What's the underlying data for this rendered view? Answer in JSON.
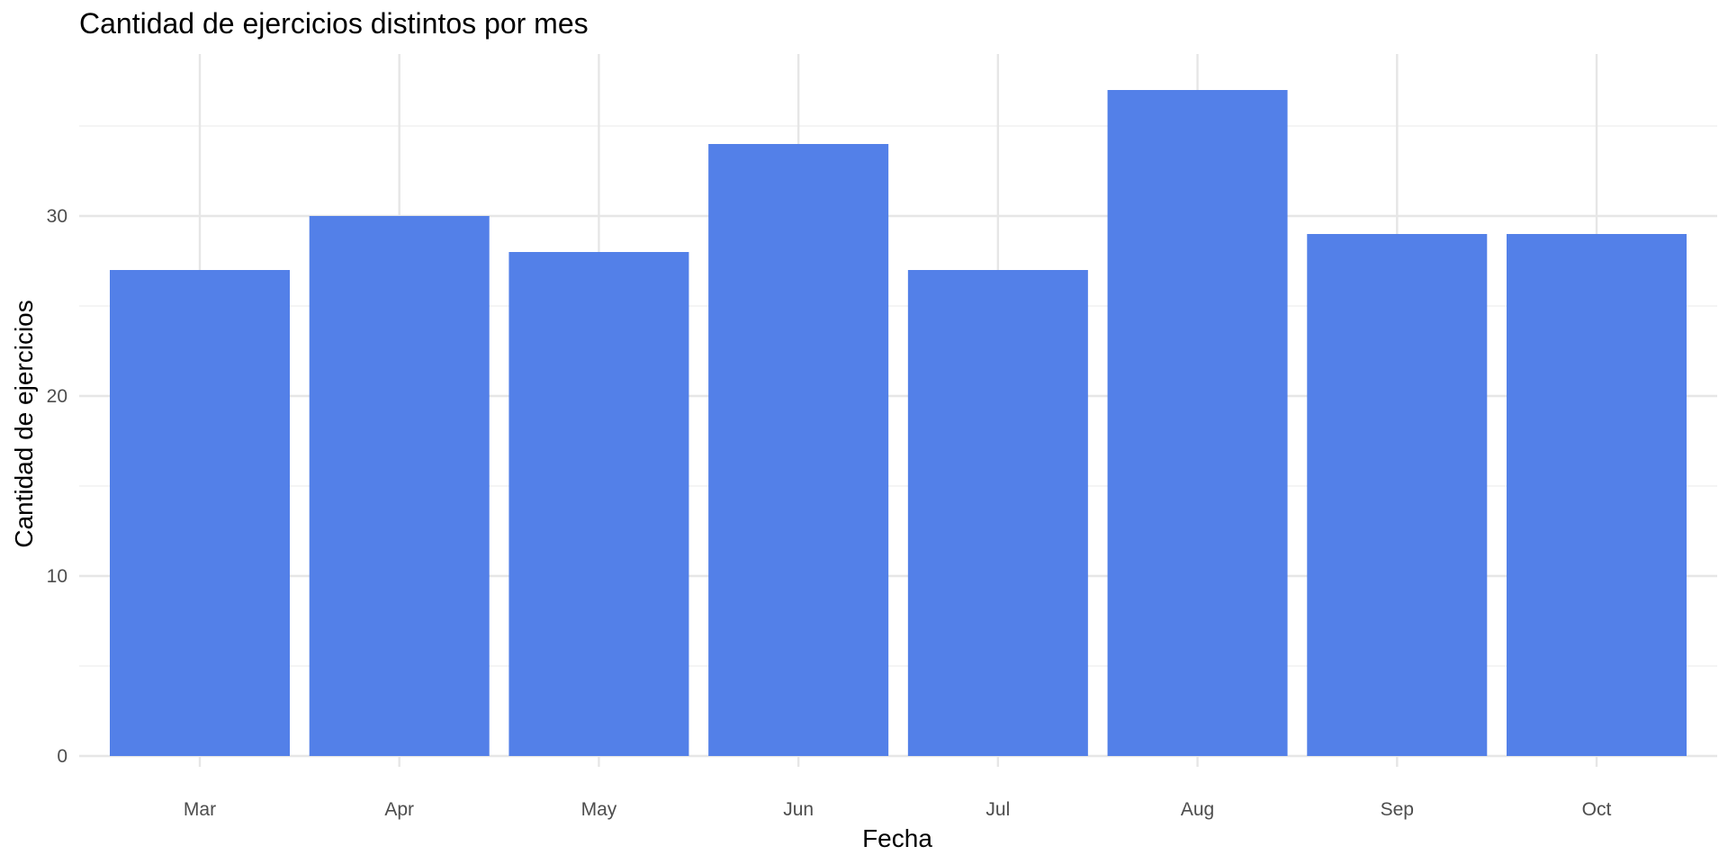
{
  "chart_data": {
    "type": "bar",
    "title": "Cantidad de ejercicios distintos por mes",
    "xlabel": "Fecha",
    "ylabel": "Cantidad de ejercicios",
    "categories": [
      "Mar",
      "Apr",
      "May",
      "Jun",
      "Jul",
      "Aug",
      "Sep",
      "Oct"
    ],
    "values": [
      27,
      30,
      28,
      34,
      27,
      37,
      29,
      29
    ],
    "ylim": [
      0,
      38
    ],
    "yticks": [
      0,
      10,
      20,
      30
    ],
    "bar_color": "#5380e8",
    "grid": true,
    "legend": "none"
  }
}
